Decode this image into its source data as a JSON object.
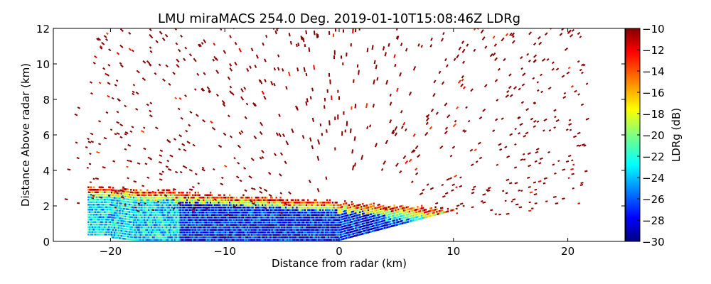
{
  "chart_data": {
    "type": "heatmap",
    "title": "LMU miraMACS 254.0 Deg. 2019-01-10T15:08:46Z  LDRg",
    "xlabel": "Distance from radar (km)",
    "ylabel": "Distance Above radar  (km)",
    "xlim": [
      -25,
      25
    ],
    "ylim": [
      0,
      12
    ],
    "xticks": [
      -20,
      -10,
      0,
      10,
      20
    ],
    "xtick_labels": [
      "−20",
      "−10",
      "0",
      "10",
      "20"
    ],
    "yticks": [
      0,
      2,
      4,
      6,
      8,
      10,
      12
    ],
    "ytick_labels": [
      "0",
      "2",
      "4",
      "6",
      "8",
      "10",
      "12"
    ],
    "colorbar": {
      "label": "LDRg (dB)",
      "range": [
        -30,
        -10
      ],
      "ticks": [
        -10,
        -12,
        -14,
        -16,
        -18,
        -20,
        -22,
        -24,
        -26,
        -28,
        -30
      ],
      "tick_labels": [
        "−10",
        "−12",
        "−14",
        "−16",
        "−18",
        "−20",
        "−22",
        "−24",
        "−26",
        "−28",
        "−30"
      ],
      "colormap": "jet"
    },
    "regions": [
      {
        "name": "cloud-layer",
        "x_range_km": [
          -22,
          10
        ],
        "top_km": [
          3.0,
          1.7
        ],
        "ldr_range_db": [
          -30,
          -22
        ],
        "note_values": "top edge warmer (-16 to -10 dB)"
      },
      {
        "name": "noise-speckle",
        "max_range_km": 24,
        "ldr_typical_db": -10
      }
    ],
    "grid": false
  }
}
